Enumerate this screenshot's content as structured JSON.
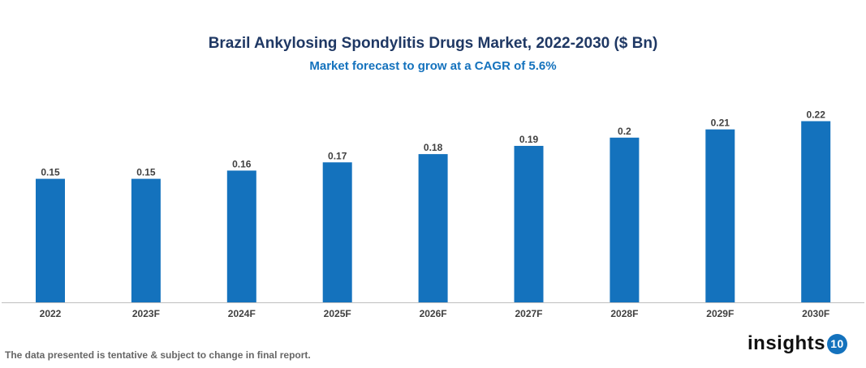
{
  "chart_data": {
    "type": "bar",
    "title": "Brazil Ankylosing Spondylitis Drugs Market, 2022-2030 ($ Bn)",
    "subtitle": "Market forecast to grow at a CAGR of 5.6%",
    "categories": [
      "2022",
      "2023F",
      "2024F",
      "2025F",
      "2026F",
      "2027F",
      "2028F",
      "2029F",
      "2030F"
    ],
    "values": [
      0.15,
      0.15,
      0.16,
      0.17,
      0.18,
      0.19,
      0.2,
      0.21,
      0.22
    ],
    "xlabel": "",
    "ylabel": "",
    "ylim": [
      0,
      0.25
    ],
    "grid": false,
    "bar_color": "#1472bd"
  },
  "footer": {
    "note": "The data presented is tentative & subject to change in final report.",
    "logo_text": "insights",
    "logo_badge": "10"
  }
}
